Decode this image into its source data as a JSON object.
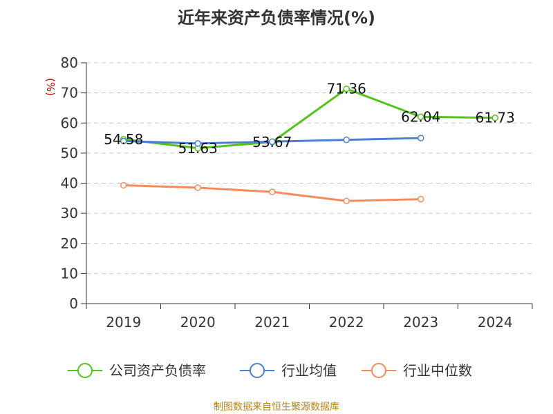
{
  "chart_data": {
    "type": "line",
    "title": "近年来资产负债率情况(%)",
    "ylabel": "(%)",
    "xlabel": "",
    "categories": [
      "2019",
      "2020",
      "2021",
      "2022",
      "2023",
      "2024"
    ],
    "ylim": [
      0,
      80
    ],
    "yticks": [
      0,
      10,
      20,
      30,
      40,
      50,
      60,
      70,
      80
    ],
    "grid": true,
    "legend_position": "bottom",
    "series": [
      {
        "name": "公司资产负债率",
        "color": "#52c41a",
        "values": [
          54.58,
          51.63,
          53.67,
          71.36,
          62.04,
          61.73
        ],
        "labels": [
          "54.58",
          "51.63",
          "53.67",
          "71.36",
          "62.04",
          "61.73"
        ]
      },
      {
        "name": "行业均值",
        "color": "#4a7fd4",
        "values": [
          54.0,
          53.2,
          53.8,
          54.4,
          55.0,
          null
        ],
        "labels": []
      },
      {
        "name": "行业中位数",
        "color": "#f28c5b",
        "values": [
          39.3,
          38.5,
          37.1,
          34.1,
          34.7,
          null
        ],
        "labels": []
      }
    ]
  },
  "source_note": "制图数据来自恒生聚源数据库"
}
